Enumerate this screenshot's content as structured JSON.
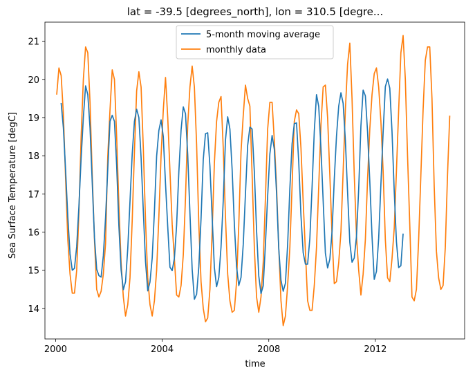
{
  "chart_data": {
    "type": "line",
    "title": "lat = -39.5 [degrees_north], lon = 310.5 [degre...",
    "xlabel": "time",
    "ylabel": "Sea Surface Temperature [degC]",
    "xlim": [
      1999.6,
      2015.35
    ],
    "ylim": [
      13.2,
      21.5
    ],
    "xticks": [
      2000,
      2004,
      2008,
      2012
    ],
    "xtick_labels": [
      "2000",
      "2004",
      "2008",
      "2012"
    ],
    "yticks": [
      14,
      15,
      16,
      17,
      18,
      19,
      20,
      21
    ],
    "ytick_labels": [
      "14",
      "15",
      "16",
      "17",
      "18",
      "19",
      "20",
      "21"
    ],
    "legend_position": "upper-center",
    "colors": {
      "moving_average": "#1f77b4",
      "monthly": "#ff7f0e"
    },
    "series": [
      {
        "name": "monthly data",
        "color": "#ff7f0e",
        "x_start": 2000.0417,
        "x_step": 0.08333,
        "values": [
          19.6,
          20.3,
          20.1,
          19.1,
          17.4,
          15.8,
          14.9,
          14.4,
          14.4,
          15.0,
          16.5,
          18.5,
          20.0,
          20.85,
          20.7,
          19.4,
          17.5,
          15.8,
          14.5,
          14.3,
          14.45,
          14.9,
          15.7,
          18.0,
          19.2,
          20.25,
          20.0,
          18.5,
          16.7,
          15.2,
          14.3,
          13.8,
          14.1,
          14.8,
          16.3,
          18.1,
          19.7,
          20.2,
          19.8,
          18.2,
          16.3,
          14.8,
          14.1,
          13.8,
          14.2,
          15.0,
          16.4,
          18.0,
          19.2,
          20.05,
          19.0,
          17.6,
          16.2,
          15.3,
          14.35,
          14.3,
          14.6,
          15.4,
          16.9,
          18.8,
          19.8,
          20.35,
          19.8,
          18.3,
          16.2,
          14.7,
          14.0,
          13.65,
          13.75,
          14.5,
          16.0,
          17.8,
          18.9,
          19.4,
          19.55,
          18.2,
          16.4,
          14.9,
          14.2,
          13.9,
          13.95,
          14.7,
          16.2,
          18.1,
          19.05,
          19.85,
          19.5,
          19.3,
          17.5,
          15.6,
          14.3,
          13.9,
          14.3,
          15.2,
          16.9,
          18.7,
          19.4,
          19.4,
          18.4,
          17.2,
          15.6,
          14.2,
          13.55,
          13.8,
          14.6,
          15.6,
          17.2,
          18.9,
          19.2,
          19.1,
          18.2,
          16.8,
          15.5,
          14.2,
          13.95,
          13.95,
          14.6,
          15.6,
          17.2,
          18.8,
          19.8,
          19.85,
          19.0,
          17.5,
          15.9,
          14.65,
          14.7,
          15.2,
          16.0,
          17.6,
          19.2,
          20.4,
          20.95,
          19.5,
          17.5,
          15.9,
          15.0,
          14.35,
          14.9,
          15.8,
          17.4,
          18.7,
          19.6,
          20.15,
          20.3,
          19.8,
          18.9,
          17.6,
          15.8,
          14.8,
          14.7,
          15.3,
          16.1,
          17.6,
          19.2,
          20.7,
          21.15,
          20.0,
          18.0,
          16.2,
          14.3,
          14.2,
          14.5,
          15.8,
          17.5,
          19.2,
          20.5,
          20.85,
          20.85,
          19.5,
          17.2,
          15.5,
          14.8,
          14.5,
          14.6,
          15.6,
          17.5,
          19.05
        ]
      },
      {
        "name": "5-month moving average",
        "color": "#1f77b4",
        "x_start": 2000.2083,
        "x_step": 0.08333,
        "values": [
          19.38,
          18.73,
          17.62,
          16.4,
          15.43,
          15.0,
          15.05,
          15.62,
          16.68,
          17.94,
          19.0,
          19.83,
          19.6,
          18.73,
          17.3,
          15.86,
          15.03,
          14.86,
          14.82,
          15.38,
          16.38,
          17.66,
          18.9,
          19.06,
          18.9,
          17.74,
          16.16,
          15.01,
          14.49,
          14.7,
          15.57,
          16.8,
          18.04,
          18.9,
          19.22,
          19.0,
          17.95,
          16.55,
          15.22,
          14.46,
          14.69,
          15.32,
          16.54,
          17.99,
          18.66,
          18.94,
          18.5,
          17.27,
          16.14,
          15.08,
          14.99,
          15.31,
          16.18,
          17.57,
          18.67,
          19.28,
          19.1,
          18.03,
          16.5,
          15.03,
          14.24,
          14.37,
          15.09,
          16.35,
          17.9,
          18.58,
          18.6,
          17.73,
          16.4,
          15.07,
          14.57,
          14.81,
          15.61,
          16.82,
          18.41,
          19.02,
          18.7,
          17.64,
          16.21,
          15.09,
          14.6,
          14.81,
          15.67,
          17.0,
          18.27,
          18.75,
          18.7,
          17.58,
          16.05,
          14.85,
          14.39,
          14.59,
          15.68,
          16.94,
          18.05,
          18.53,
          18.17,
          17.03,
          15.56,
          14.74,
          14.45,
          14.66,
          15.67,
          17.14,
          18.31,
          18.84,
          18.86,
          17.83,
          16.43,
          15.46,
          15.16,
          15.16,
          15.83,
          17.17,
          18.64,
          19.6,
          19.29,
          18.2,
          16.82,
          15.45,
          15.06,
          15.29,
          16.01,
          17.38,
          18.51,
          19.3,
          19.65,
          19.37,
          18.4,
          17.04,
          15.73,
          15.21,
          15.32,
          15.88,
          17.13,
          18.78,
          19.72,
          19.57,
          18.62,
          17.33,
          15.89,
          14.76,
          14.97,
          15.84,
          17.25,
          18.61,
          19.81,
          20.01,
          19.77,
          18.64,
          17.07,
          15.75,
          15.07,
          15.12,
          15.96
        ]
      }
    ]
  }
}
